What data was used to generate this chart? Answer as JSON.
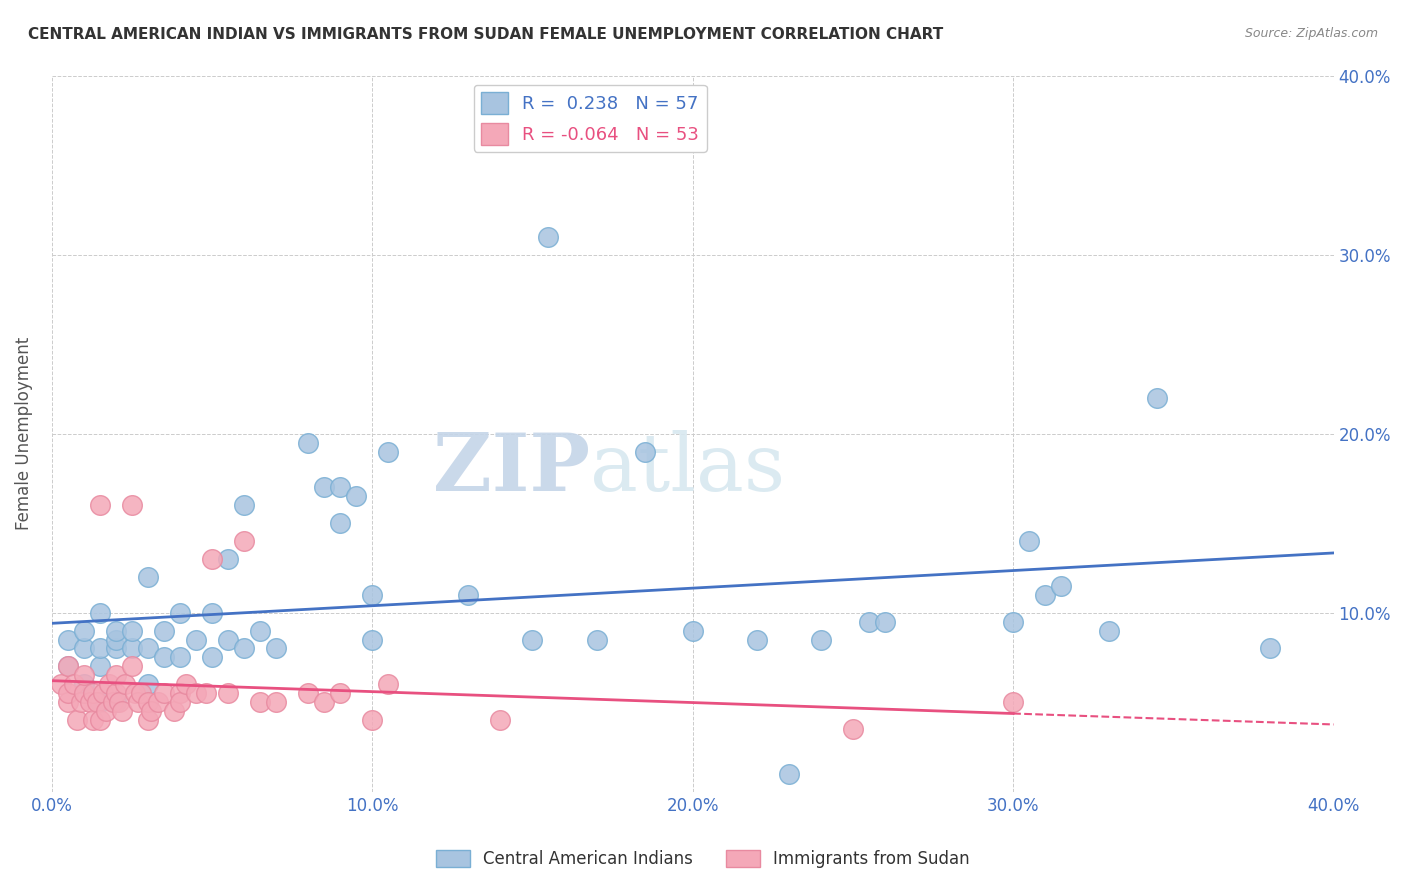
{
  "title": "CENTRAL AMERICAN INDIAN VS IMMIGRANTS FROM SUDAN FEMALE UNEMPLOYMENT CORRELATION CHART",
  "source": "Source: ZipAtlas.com",
  "xlabel": "",
  "ylabel": "Female Unemployment",
  "xlim": [
    0.0,
    0.4
  ],
  "ylim": [
    0.0,
    0.4
  ],
  "xticks": [
    0.0,
    0.1,
    0.2,
    0.3,
    0.4
  ],
  "yticks": [
    0.0,
    0.1,
    0.2,
    0.3,
    0.4
  ],
  "xtick_labels": [
    "0.0%",
    "10.0%",
    "20.0%",
    "30.0%",
    "40.0%"
  ],
  "ytick_labels": [
    "",
    "10.0%",
    "20.0%",
    "30.0%",
    "40.0%"
  ],
  "blue_R": 0.238,
  "blue_N": 57,
  "pink_R": -0.064,
  "pink_N": 53,
  "blue_color": "#a8c4e0",
  "blue_edge": "#7aafd4",
  "pink_color": "#f4a8b8",
  "pink_edge": "#e88aa0",
  "blue_line_color": "#4472c4",
  "pink_line_color": "#e85080",
  "watermark_zip": "ZIP",
  "watermark_atlas": "atlas",
  "legend_label_blue": "Central American Indians",
  "legend_label_pink": "Immigrants from Sudan",
  "blue_x": [
    0.005,
    0.005,
    0.01,
    0.01,
    0.01,
    0.015,
    0.015,
    0.015,
    0.015,
    0.02,
    0.02,
    0.02,
    0.02,
    0.025,
    0.025,
    0.03,
    0.03,
    0.03,
    0.035,
    0.035,
    0.04,
    0.04,
    0.045,
    0.05,
    0.05,
    0.055,
    0.055,
    0.06,
    0.06,
    0.065,
    0.07,
    0.08,
    0.085,
    0.09,
    0.09,
    0.095,
    0.1,
    0.1,
    0.105,
    0.13,
    0.15,
    0.155,
    0.17,
    0.185,
    0.2,
    0.22,
    0.23,
    0.24,
    0.255,
    0.26,
    0.3,
    0.305,
    0.31,
    0.315,
    0.33,
    0.345,
    0.38
  ],
  "blue_y": [
    0.07,
    0.085,
    0.06,
    0.08,
    0.09,
    0.05,
    0.07,
    0.08,
    0.1,
    0.05,
    0.08,
    0.085,
    0.09,
    0.08,
    0.09,
    0.06,
    0.08,
    0.12,
    0.075,
    0.09,
    0.075,
    0.1,
    0.085,
    0.075,
    0.1,
    0.085,
    0.13,
    0.08,
    0.16,
    0.09,
    0.08,
    0.195,
    0.17,
    0.15,
    0.17,
    0.165,
    0.11,
    0.085,
    0.19,
    0.11,
    0.085,
    0.31,
    0.085,
    0.19,
    0.09,
    0.085,
    0.01,
    0.085,
    0.095,
    0.095,
    0.095,
    0.14,
    0.11,
    0.115,
    0.09,
    0.22,
    0.08
  ],
  "pink_x": [
    0.003,
    0.005,
    0.005,
    0.005,
    0.007,
    0.008,
    0.009,
    0.01,
    0.01,
    0.012,
    0.013,
    0.013,
    0.014,
    0.015,
    0.015,
    0.016,
    0.017,
    0.018,
    0.019,
    0.02,
    0.02,
    0.021,
    0.022,
    0.023,
    0.025,
    0.025,
    0.026,
    0.027,
    0.028,
    0.03,
    0.03,
    0.031,
    0.033,
    0.035,
    0.038,
    0.04,
    0.04,
    0.042,
    0.045,
    0.048,
    0.05,
    0.055,
    0.06,
    0.065,
    0.07,
    0.08,
    0.085,
    0.09,
    0.1,
    0.105,
    0.14,
    0.25,
    0.3
  ],
  "pink_y": [
    0.06,
    0.05,
    0.055,
    0.07,
    0.06,
    0.04,
    0.05,
    0.055,
    0.065,
    0.05,
    0.04,
    0.055,
    0.05,
    0.16,
    0.04,
    0.055,
    0.045,
    0.06,
    0.05,
    0.055,
    0.065,
    0.05,
    0.045,
    0.06,
    0.07,
    0.16,
    0.055,
    0.05,
    0.055,
    0.04,
    0.05,
    0.045,
    0.05,
    0.055,
    0.045,
    0.055,
    0.05,
    0.06,
    0.055,
    0.055,
    0.13,
    0.055,
    0.14,
    0.05,
    0.05,
    0.055,
    0.05,
    0.055,
    0.04,
    0.06,
    0.04,
    0.035,
    0.05
  ]
}
